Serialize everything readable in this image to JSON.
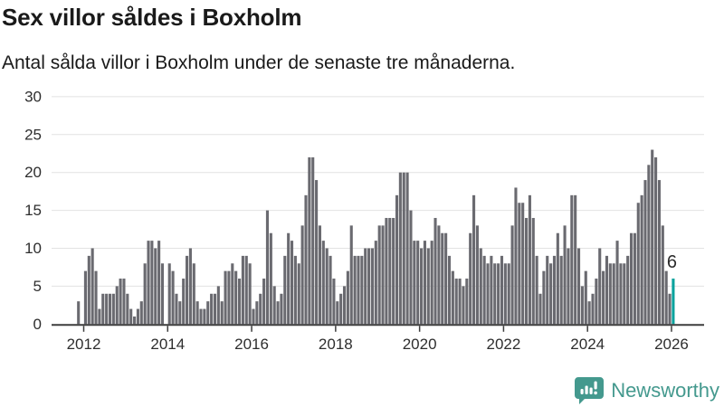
{
  "header": {
    "title": "Sex villor såldes i Boxholm",
    "subtitle": "Antal sålda villor i Boxholm under de senaste tre månaderna."
  },
  "chart_data": {
    "type": "bar",
    "title": "Sex villor såldes i Boxholm",
    "subtitle": "Antal sålda villor i Boxholm under de senaste tre månaderna.",
    "frequency": "monthly",
    "x_start": "2011-11",
    "x_end": "2026-01",
    "values": [
      3,
      0,
      7,
      9,
      10,
      7,
      2,
      4,
      4,
      4,
      4,
      5,
      6,
      6,
      4,
      2,
      1,
      2,
      3,
      8,
      11,
      11,
      10,
      11,
      8,
      0,
      8,
      7,
      4,
      3,
      6,
      9,
      10,
      8,
      3,
      2,
      2,
      3,
      4,
      4,
      5,
      3,
      7,
      7,
      8,
      7,
      6,
      9,
      9,
      8,
      2,
      3,
      4,
      6,
      15,
      12,
      5,
      3,
      4,
      9,
      12,
      11,
      9,
      8,
      13,
      17,
      22,
      22,
      19,
      13,
      11,
      10,
      9,
      6,
      3,
      4,
      5,
      7,
      13,
      9,
      9,
      9,
      10,
      10,
      10,
      11,
      13,
      13,
      14,
      14,
      14,
      17,
      20,
      20,
      20,
      15,
      11,
      11,
      10,
      11,
      10,
      11,
      14,
      13,
      12,
      12,
      9,
      7,
      6,
      6,
      5,
      6,
      12,
      17,
      13,
      10,
      9,
      8,
      9,
      8,
      8,
      9,
      8,
      8,
      13,
      18,
      16,
      16,
      14,
      17,
      14,
      9,
      4,
      7,
      9,
      8,
      9,
      12,
      9,
      13,
      10,
      17,
      17,
      10,
      5,
      7,
      3,
      4,
      6,
      10,
      7,
      9,
      8,
      8,
      11,
      8,
      8,
      9,
      12,
      12,
      16,
      17,
      19,
      21,
      23,
      22,
      19,
      13,
      7,
      4,
      6
    ],
    "highlight_last": true,
    "highlight_label": "6",
    "y_ticks": [
      0,
      5,
      10,
      15,
      20,
      25,
      30
    ],
    "ylim": [
      0,
      30
    ],
    "x_tick_years": [
      "2012",
      "2014",
      "2016",
      "2018",
      "2020",
      "2022",
      "2024",
      "2026"
    ],
    "grid": true,
    "legend": "none",
    "bar_color": "#6a6a70",
    "highlight_color": "#0aa29d",
    "grid_color": "#e2e2e2",
    "axis_color": "#3d3d3d",
    "tick_label_color": "#2e2e2e"
  },
  "footer": {
    "brand": "Newsworthy",
    "brand_color": "#44998e",
    "icon": "newsworthy-bubble-chart-icon"
  }
}
